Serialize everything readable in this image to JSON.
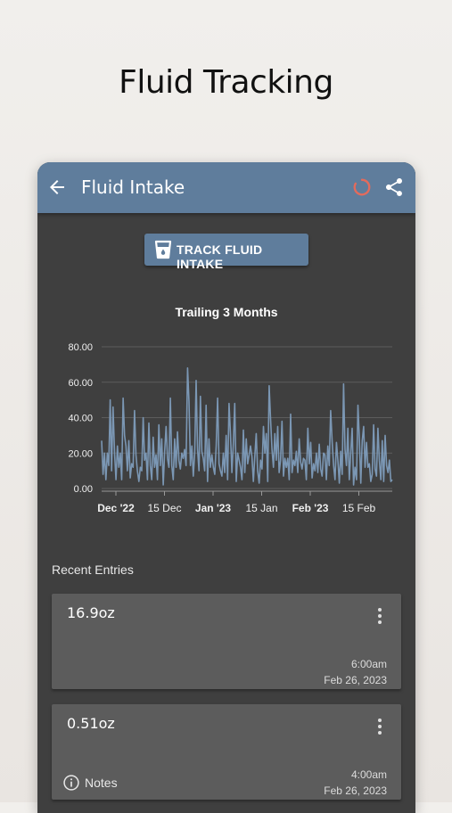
{
  "promo": {
    "title": "Fluid Tracking"
  },
  "appbar": {
    "title": "Fluid Intake",
    "back_icon": "arrow-back-icon",
    "loading_icon": "loading-spinner-icon",
    "share_icon": "share-icon"
  },
  "track_button": {
    "label": "TRACK FLUID INTAKE",
    "icon": "water-cup-icon"
  },
  "colors": {
    "primary": "#5f7d9c",
    "background": "#3f3f3f",
    "card": "#5c5c5c",
    "spinner": "#e36b5c",
    "line": "#7b97b4"
  },
  "chart_data": {
    "type": "line",
    "title": "Trailing 3 Months",
    "xlabel": "",
    "ylabel": "",
    "ylim": [
      0,
      80
    ],
    "yticks": [
      "0.00",
      "20.00",
      "40.00",
      "60.00",
      "80.00"
    ],
    "xticks": [
      {
        "label": "Dec '22",
        "bold": true
      },
      {
        "label": "15 Dec",
        "bold": false
      },
      {
        "label": "Jan '23",
        "bold": true
      },
      {
        "label": "15 Jan",
        "bold": false
      },
      {
        "label": "Feb '23",
        "bold": true
      },
      {
        "label": "15 Feb",
        "bold": false
      }
    ],
    "grid": true,
    "series": [
      {
        "values": [
          27,
          8,
          20,
          5,
          20,
          13,
          50,
          10,
          46,
          20,
          5,
          24,
          12,
          20,
          5,
          51,
          30,
          24,
          10,
          27,
          6,
          14,
          12,
          44,
          19,
          10,
          4,
          12,
          10,
          40,
          16,
          20,
          5,
          37,
          13,
          5,
          29,
          12,
          19,
          5,
          36,
          13,
          28,
          2,
          21,
          35,
          17,
          12,
          51,
          13,
          5,
          28,
          12,
          32,
          16,
          11,
          20,
          17,
          22,
          13,
          68,
          49,
          13,
          24,
          7,
          20,
          61,
          22,
          10,
          52,
          21,
          17,
          10,
          47,
          4,
          28,
          12,
          19,
          12,
          8,
          24,
          51,
          14,
          10,
          7,
          20,
          9,
          30,
          5,
          48,
          31,
          9,
          25,
          48,
          4,
          20,
          16,
          12,
          5,
          33,
          9,
          28,
          14,
          19,
          24,
          18,
          4,
          18,
          31,
          10,
          3,
          16,
          11,
          35,
          20,
          31,
          4,
          58,
          39,
          22,
          12,
          31,
          16,
          35,
          9,
          16,
          38,
          7,
          17,
          12,
          17,
          5,
          42,
          9,
          16,
          13,
          21,
          9,
          28,
          15,
          11,
          17,
          16,
          5,
          34,
          14,
          26,
          6,
          14,
          10,
          20,
          9,
          25,
          11,
          7,
          20,
          19,
          5,
          24,
          13,
          44,
          26,
          13,
          5,
          26,
          16,
          3,
          21,
          8,
          59,
          22,
          13,
          34,
          5,
          20,
          34,
          2,
          12,
          5,
          47,
          28,
          3,
          27,
          35,
          12,
          26,
          12,
          14,
          4,
          8,
          36,
          11,
          7,
          34,
          16,
          5,
          27,
          4,
          30,
          13,
          9,
          16,
          4,
          5
        ]
      }
    ]
  },
  "recent": {
    "title": "Recent Entries",
    "entries": [
      {
        "amount": "16.9oz",
        "time": "6:00am",
        "date": "Feb 26, 2023"
      },
      {
        "amount": "0.51oz",
        "time": "4:00am",
        "date": "Feb 26, 2023",
        "notes_label": "Notes"
      }
    ]
  }
}
